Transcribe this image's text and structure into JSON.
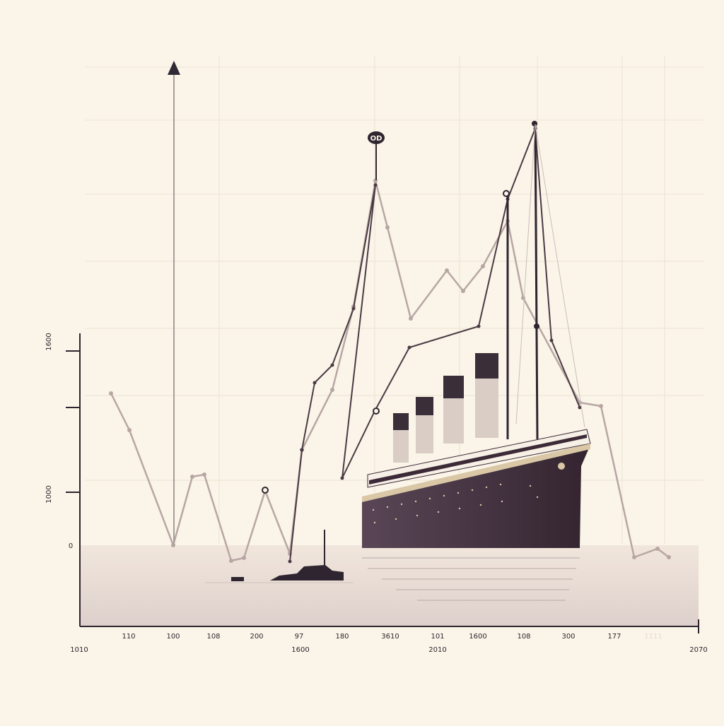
{
  "chart_data": {
    "type": "line",
    "title": "",
    "xlabel": "",
    "ylabel": "",
    "y_tick_labels": [
      "1600",
      "1000",
      "0"
    ],
    "x_tick_labels_top": [
      "110",
      "100",
      "108",
      "200",
      "97",
      "180",
      "3610",
      "101",
      "1600",
      "108",
      "300",
      "177",
      "1111"
    ],
    "x_tick_labels_bottom": [
      "1010",
      "1600",
      "2010",
      "2070"
    ],
    "annotation": "OD",
    "series": [
      {
        "name": "",
        "color": "#b8a6a4",
        "x": [
          157,
          183,
          245,
          272,
          289,
          327,
          345,
          375,
          410,
          427,
          470,
          500,
          531,
          548,
          581,
          632,
          655,
          683,
          718,
          740,
          820,
          850,
          897,
          930,
          946
        ],
        "y": [
          215,
          163,
          0,
          97,
          100,
          -22,
          -18,
          77,
          -12,
          135,
          220,
          338,
          516,
          450,
          321,
          389,
          360,
          395,
          459,
          350,
          202,
          197,
          -17,
          -5,
          -17
        ]
      },
      {
        "name": "",
        "color": "#4a3a45",
        "x": [
          410,
          427,
          445,
          470,
          500,
          531,
          484,
          530,
          579,
          677,
          718,
          757,
          780,
          820
        ],
        "y": [
          -23,
          135,
          230,
          255,
          335,
          510,
          95,
          190,
          280,
          310,
          490,
          590,
          290,
          195
        ]
      }
    ]
  },
  "colors": {
    "background": "#faf5e8",
    "grid": "#ece4d4",
    "axis": "#3a2e36",
    "hull": "#3c2a37",
    "hull_top": "#5e4a57",
    "stripe": "#d9c7a6",
    "deck": "#ffffff",
    "funnel_top": "#3a2e38",
    "funnel_body": "#dacdc5",
    "water_top": "#f1e6dc",
    "water_bottom": "#ddd0cc"
  },
  "icons": {
    "axis_arrow": "triangle-up-icon",
    "ship": "ocean-liner-icon",
    "small_boat": "steam-boat-icon"
  }
}
